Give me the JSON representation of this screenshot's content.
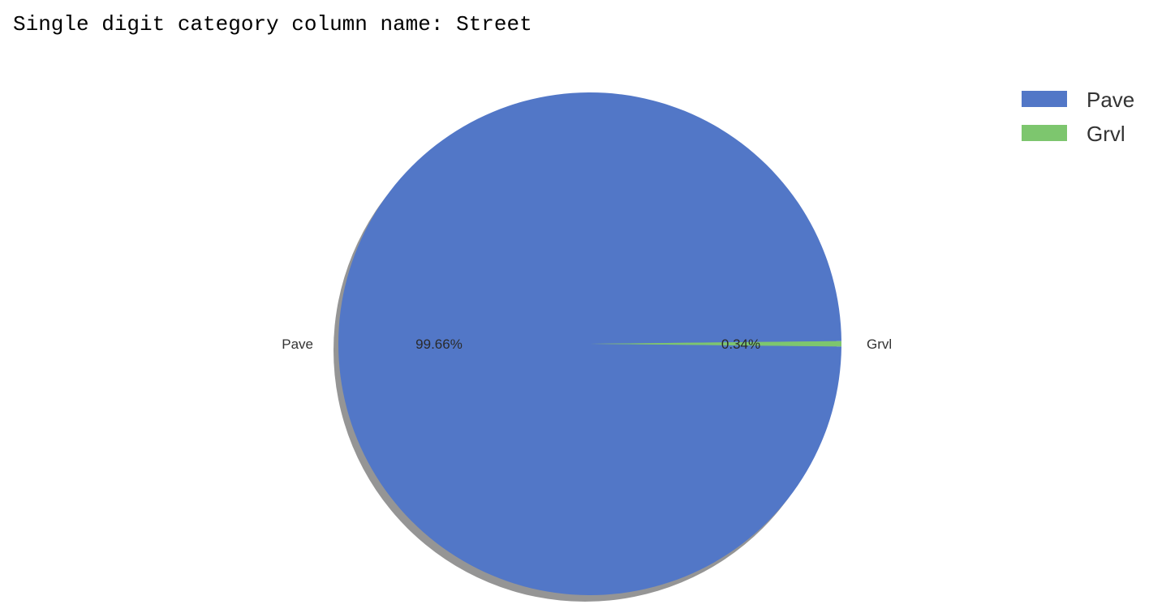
{
  "output": {
    "text": "Single digit category column name: Street"
  },
  "chart_data": {
    "type": "pie",
    "title": "",
    "categories": [
      "Pave",
      "Grvl"
    ],
    "values": [
      99.66,
      0.34
    ],
    "value_labels": [
      "99.66%",
      "0.34%"
    ],
    "colors": [
      "#5277c7",
      "#7dc66e"
    ],
    "shadow": true,
    "legend": {
      "placement": "top-right",
      "entries": [
        "Pave",
        "Grvl"
      ]
    }
  }
}
